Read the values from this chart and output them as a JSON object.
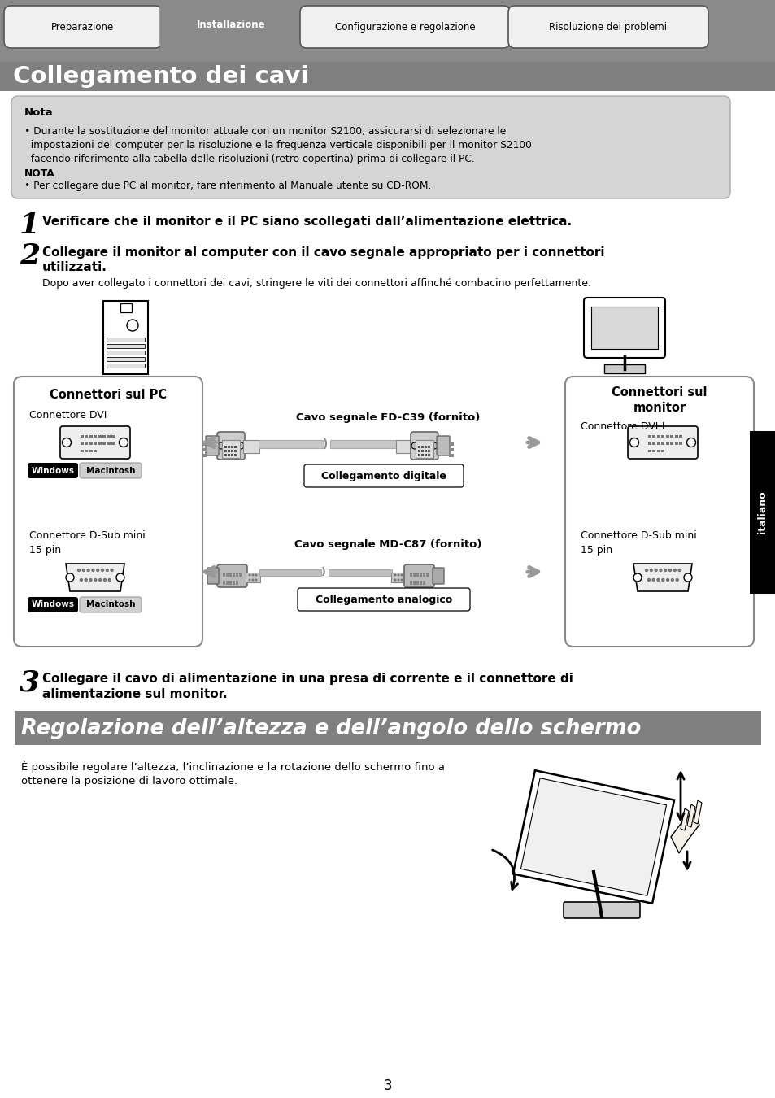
{
  "bg_color": "#ffffff",
  "tab_gray": "#8a8a8a",
  "header_gray": "#808080",
  "tabs": [
    "Preparazione",
    "Installazione",
    "Configurazione e regolazione",
    "Risoluzione dei problemi"
  ],
  "active_tab": 1,
  "title": "Collegamento dei cavi",
  "nota_title": "Nota",
  "nota_line1": "• Durante la sostituzione del monitor attuale con un monitor S2100, assicurarsi di selezionare le",
  "nota_line2": "  impostazioni del computer per la risoluzione e la frequenza verticale disponibili per il monitor S2100",
  "nota_line3": "  facendo riferimento alla tabella delle risoluzioni (retro copertina) prima di collegare il PC.",
  "nota_nota": "NOTA",
  "nota_note2": "• Per collegare due PC al monitor, fare riferimento al Manuale utente su CD-ROM.",
  "step1": "Verificare che il monitor e il PC siano scollegati dall’alimentazione elettrica.",
  "step2a": "Collegare il monitor al computer con il cavo segnale appropriato per i connettori",
  "step2b": "utilizzati.",
  "step2_sub": "Dopo aver collegato i connettori dei cavi, stringere le viti dei connettori affinché combacino perfettamente.",
  "pc_title": "Connettori sul PC",
  "pc_dvi": "Connettore DVI",
  "pc_dsub": "Connettore D-Sub mini\n15 pin",
  "mon_title": "Connettori sul\nmonitor",
  "mon_dvi": "Connettore DVI-I",
  "mon_dsub": "Connettore D-Sub mini\n15 pin",
  "cable1_title": "Cavo segnale FD-C39 (fornito)",
  "cable1_sub": "Collegamento digitale",
  "cable2_title": "Cavo segnale MD-C87 (fornito)",
  "cable2_sub": "Collegamento analogico",
  "step3a": "Collegare il cavo di alimentazione in una presa di corrente e il connettore di",
  "step3b": "alimentazione sul monitor.",
  "sec2_title": "Regolazione dell’altezza e dell’angolo dello schermo",
  "sec2_text1": "È possibile regolare l’altezza, l’inclinazione e la rotazione dello schermo fino a",
  "sec2_text2": "ottenere la posizione di lavoro ottimale.",
  "italiano": "italiano",
  "page": "3"
}
